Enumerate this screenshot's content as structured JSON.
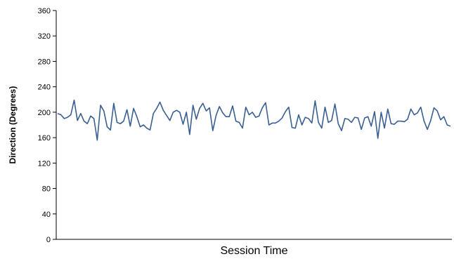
{
  "chart_data": {
    "type": "line",
    "title": "",
    "xlabel": "Session Time",
    "ylabel": "Direction (Degrees)",
    "ylim": [
      0,
      360
    ],
    "yticks": [
      0,
      40,
      80,
      120,
      160,
      200,
      240,
      280,
      320,
      360
    ],
    "grid": false,
    "legend": "none",
    "x_ticks_shown": false,
    "series": [
      {
        "color": "#3a5f93",
        "values": [
          198,
          196,
          190,
          192,
          196,
          219,
          187,
          198,
          186,
          182,
          194,
          190,
          156,
          211,
          202,
          177,
          172,
          214,
          184,
          182,
          186,
          204,
          178,
          206,
          193,
          177,
          180,
          175,
          172,
          198,
          206,
          216,
          203,
          195,
          187,
          200,
          203,
          200,
          181,
          200,
          165,
          211,
          189,
          206,
          214,
          202,
          207,
          171,
          195,
          209,
          199,
          193,
          193,
          210,
          186,
          184,
          175,
          208,
          196,
          200,
          192,
          194,
          207,
          215,
          180,
          183,
          183,
          186,
          191,
          201,
          208,
          176,
          175,
          196,
          180,
          192,
          190,
          183,
          218,
          184,
          175,
          208,
          184,
          187,
          213,
          182,
          171,
          190,
          189,
          184,
          192,
          191,
          173,
          191,
          193,
          178,
          201,
          159,
          200,
          175,
          205,
          182,
          181,
          186,
          186,
          185,
          189,
          205,
          196,
          199,
          208,
          186,
          173,
          187,
          207,
          202,
          188,
          193,
          180,
          178
        ]
      }
    ]
  }
}
